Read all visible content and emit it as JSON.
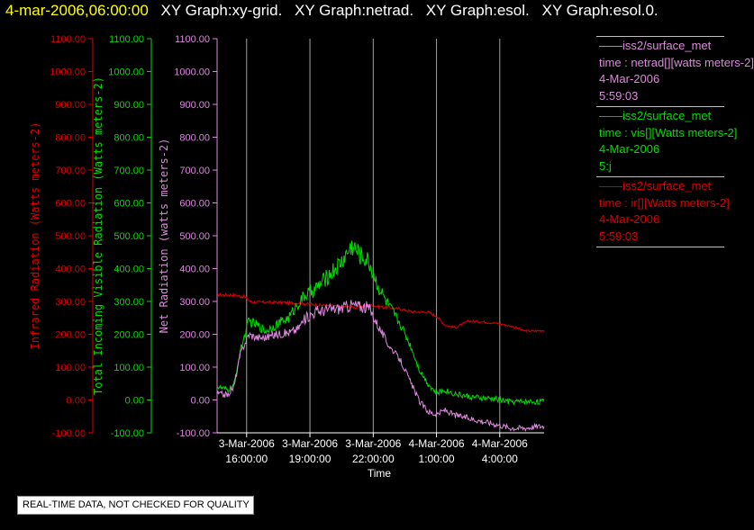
{
  "title_bar": {
    "timestamp": "4-mar-2006,06:00:00",
    "graphs": [
      "XY Graph:xy-grid.",
      "XY Graph:netrad.",
      "XY Graph:esol.",
      "XY Graph:esol.0."
    ]
  },
  "legend": [
    {
      "name": "iss2/surface_met",
      "lines": [
        "time : netrad[][watts meters-2]",
        "4-Mar-2006",
        "5:59:03"
      ],
      "color": "#dd88dd"
    },
    {
      "name": "iss2/surface_met",
      "lines": [
        "time : vis[][Watts meters-2]",
        "4-Mar-2006",
        "5:j"
      ],
      "color": "#00dd00"
    },
    {
      "name": "iss2/surface_met",
      "lines": [
        "time : ir[][Watts meters-2]",
        "4-Mar-2006",
        "5:59:03"
      ],
      "color": "#dd0000"
    }
  ],
  "note": "REAL-TIME DATA, NOT CHECKED FOR QUALITY",
  "chart_data": {
    "type": "line",
    "xlabel": "Time",
    "x_ticks": [
      {
        "t": 0,
        "date": "3-Mar-2006",
        "time": "16:00:00"
      },
      {
        "t": 3,
        "date": "3-Mar-2006",
        "time": "19:00:00"
      },
      {
        "t": 6,
        "date": "3-Mar-2006",
        "time": "22:00:00"
      },
      {
        "t": 9,
        "date": "4-Mar-2006",
        "time": "1:00:00"
      },
      {
        "t": 12,
        "date": "4-Mar-2006",
        "time": "4:00:00"
      }
    ],
    "xlim": [
      -1.4,
      14.1
    ],
    "ylim": [
      -100,
      1100
    ],
    "y_ticks": [
      "-100.00",
      "0.00",
      "100.00",
      "200.00",
      "300.00",
      "400.00",
      "500.00",
      "600.00",
      "700.00",
      "800.00",
      "900.00",
      "1000.00",
      "1100.00"
    ],
    "vertical_grid": true,
    "axes": [
      {
        "label": "Infrared Radiation (Watts meters-2)",
        "color": "#dd0000"
      },
      {
        "label": "Total Incoming Visible Radiation (Watts meters-2)",
        "color": "#00dd00"
      },
      {
        "label": "Net Radiation (watts meters-2)",
        "color": "#dd88dd"
      }
    ],
    "series": [
      {
        "color": "#dd0000",
        "noise": 2,
        "points": [
          [
            -1.4,
            320
          ],
          [
            -0.7,
            320
          ],
          [
            -0.1,
            314
          ],
          [
            0.2,
            298
          ],
          [
            1.5,
            297
          ],
          [
            2.5,
            295
          ],
          [
            3.3,
            290
          ],
          [
            4.3,
            285
          ],
          [
            5.2,
            282
          ],
          [
            5.9,
            288
          ],
          [
            6.4,
            283
          ],
          [
            7.2,
            278
          ],
          [
            7.9,
            268
          ],
          [
            8.6,
            268
          ],
          [
            9.0,
            255
          ],
          [
            9.4,
            228
          ],
          [
            9.9,
            220
          ],
          [
            10.5,
            240
          ],
          [
            11.2,
            238
          ],
          [
            12.0,
            232
          ],
          [
            12.7,
            222
          ],
          [
            13.1,
            211
          ],
          [
            13.7,
            210
          ],
          [
            14.1,
            212
          ]
        ]
      },
      {
        "color": "#00dd00",
        "noise": 9,
        "points": [
          [
            -1.4,
            40
          ],
          [
            -0.9,
            30
          ],
          [
            -0.6,
            45
          ],
          [
            -0.3,
            150
          ],
          [
            0.1,
            240
          ],
          [
            0.5,
            228
          ],
          [
            0.9,
            210
          ],
          [
            1.4,
            230
          ],
          [
            2.0,
            250
          ],
          [
            2.4,
            290
          ],
          [
            2.8,
            320
          ],
          [
            3.3,
            340
          ],
          [
            3.9,
            380
          ],
          [
            4.5,
            420
          ],
          [
            5.0,
            470
          ],
          [
            5.4,
            440
          ],
          [
            5.8,
            420
          ],
          [
            6.2,
            350
          ],
          [
            6.7,
            290
          ],
          [
            7.3,
            230
          ],
          [
            7.8,
            160
          ],
          [
            8.2,
            90
          ],
          [
            8.6,
            50
          ],
          [
            9.0,
            20
          ],
          [
            9.4,
            30
          ],
          [
            9.8,
            20
          ],
          [
            10.5,
            10
          ],
          [
            11.2,
            5
          ],
          [
            11.9,
            2
          ],
          [
            12.4,
            -5
          ],
          [
            13.1,
            -5
          ],
          [
            13.8,
            -5
          ],
          [
            14.1,
            -5
          ]
        ]
      },
      {
        "color": "#dd88dd",
        "noise": 9,
        "points": [
          [
            -1.4,
            20
          ],
          [
            -0.9,
            15
          ],
          [
            -0.6,
            40
          ],
          [
            -0.3,
            140
          ],
          [
            0.1,
            200
          ],
          [
            0.5,
            190
          ],
          [
            0.9,
            190
          ],
          [
            1.4,
            200
          ],
          [
            2.0,
            205
          ],
          [
            2.4,
            215
          ],
          [
            2.8,
            250
          ],
          [
            3.3,
            270
          ],
          [
            3.9,
            275
          ],
          [
            4.5,
            280
          ],
          [
            5.0,
            290
          ],
          [
            5.4,
            285
          ],
          [
            5.8,
            280
          ],
          [
            6.2,
            230
          ],
          [
            6.7,
            170
          ],
          [
            7.3,
            120
          ],
          [
            7.8,
            50
          ],
          [
            8.2,
            -5
          ],
          [
            8.6,
            -35
          ],
          [
            9.0,
            -45
          ],
          [
            9.4,
            -30
          ],
          [
            9.8,
            -45
          ],
          [
            10.5,
            -55
          ],
          [
            11.2,
            -65
          ],
          [
            11.9,
            -75
          ],
          [
            12.5,
            -85
          ],
          [
            13.2,
            -85
          ],
          [
            13.8,
            -80
          ],
          [
            14.1,
            -80
          ]
        ]
      }
    ]
  }
}
